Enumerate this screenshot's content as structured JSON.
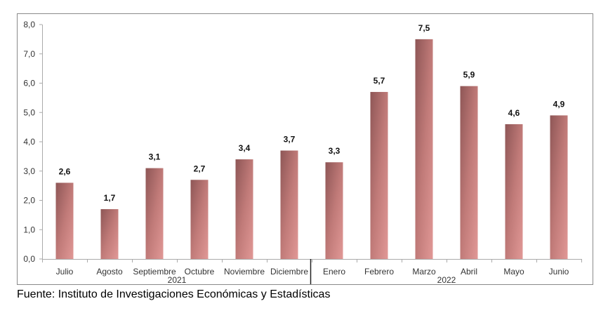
{
  "chart_data": {
    "type": "bar",
    "categories": [
      "Julio",
      "Agosto",
      "Septiembre",
      "Octubre",
      "Noviembre",
      "Diciembre",
      "Enero",
      "Febrero",
      "Marzo",
      "Abril",
      "Mayo",
      "Junio"
    ],
    "values": [
      2.6,
      1.7,
      3.1,
      2.7,
      3.4,
      3.7,
      3.3,
      5.7,
      7.5,
      5.9,
      4.6,
      4.9
    ],
    "value_labels": [
      "2,6",
      "1,7",
      "3,1",
      "2,7",
      "3,4",
      "3,7",
      "3,3",
      "5,7",
      "7,5",
      "5,9",
      "4,6",
      "4,9"
    ],
    "groups": [
      {
        "label": "2021",
        "count": 6
      },
      {
        "label": "2022",
        "count": 6
      }
    ],
    "yticks": [
      "0,0",
      "1,0",
      "2,0",
      "3,0",
      "4,0",
      "5,0",
      "6,0",
      "7,0",
      "8,0"
    ],
    "ylim": [
      0,
      8
    ],
    "title": "",
    "xlabel": "",
    "ylabel": "",
    "grid": false,
    "bar_color": "#c47a78"
  },
  "source": "Fuente: Instituto de Investigaciones Económicas y Estadísticas"
}
